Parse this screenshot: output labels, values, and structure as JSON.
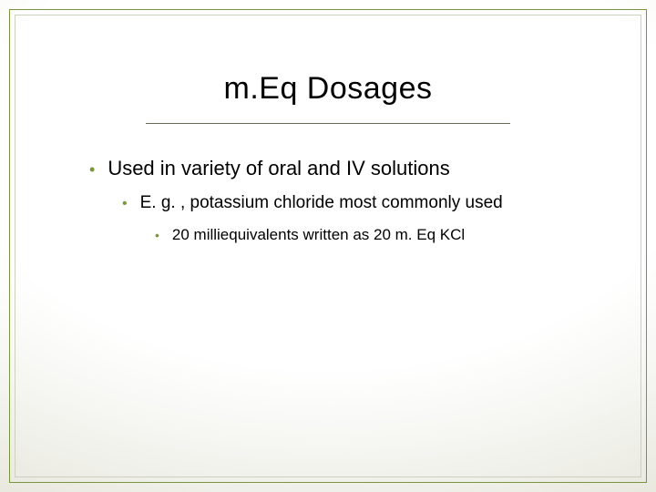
{
  "slide": {
    "title": "m.Eq Dosages",
    "title_fontsize": 34,
    "title_color": "#000000",
    "underline_color": "#6a6a5a",
    "background_gradient": {
      "center": "#ffffff",
      "edge": "#e2e2d6"
    },
    "outer_border_color": "#7a963a",
    "inner_border_color": "#cfcfbf",
    "bullet_color": "#7a963a",
    "bullets": [
      {
        "level": 1,
        "text": "Used in variety of oral and IV solutions",
        "fontsize": 22
      },
      {
        "level": 2,
        "text": "E. g. , potassium chloride most commonly used",
        "fontsize": 19
      },
      {
        "level": 3,
        "text": "20 milliequivalents written as 20 m. Eq KCl",
        "fontsize": 17
      }
    ]
  }
}
